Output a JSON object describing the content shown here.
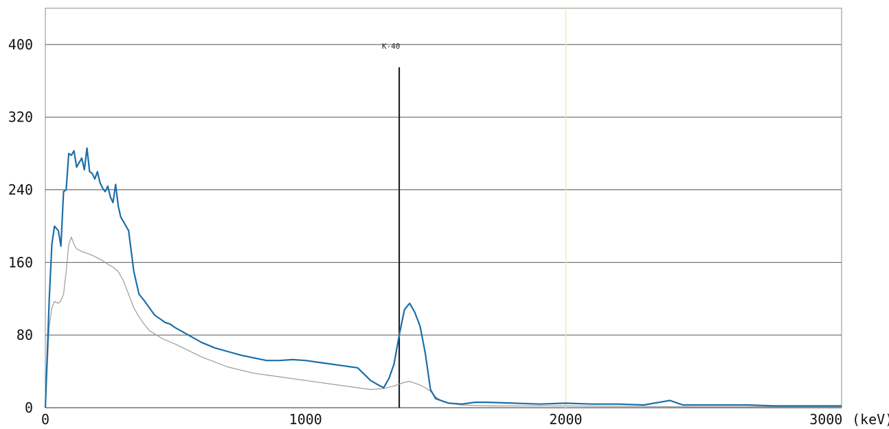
{
  "chart_data": {
    "type": "line",
    "title": "",
    "xlabel": "",
    "ylabel": "",
    "x_unit": "(keV)",
    "xlim": [
      0,
      3060
    ],
    "ylim": [
      0,
      440
    ],
    "x_ticks": [
      0,
      1000,
      2000,
      3000
    ],
    "y_ticks": [
      0,
      80,
      160,
      240,
      320,
      400
    ],
    "grid": "horizontal",
    "legend": "none",
    "series": [
      {
        "color": "#1a6ea8",
        "x": [
          0,
          15,
          25,
          35,
          50,
          60,
          70,
          80,
          90,
          100,
          110,
          120,
          130,
          140,
          150,
          160,
          170,
          180,
          190,
          200,
          210,
          220,
          230,
          240,
          250,
          260,
          270,
          280,
          290,
          300,
          320,
          340,
          360,
          380,
          400,
          420,
          440,
          460,
          480,
          500,
          550,
          600,
          650,
          700,
          750,
          800,
          850,
          900,
          950,
          1000,
          1050,
          1100,
          1150,
          1200,
          1250,
          1280,
          1300,
          1320,
          1340,
          1360,
          1380,
          1400,
          1420,
          1440,
          1460,
          1480,
          1500,
          1520,
          1550,
          1600,
          1650,
          1700,
          1800,
          1900,
          2000,
          2100,
          2200,
          2300,
          2400,
          2450,
          2500,
          2600,
          2700,
          2800,
          2900,
          3000,
          3060
        ],
        "y": [
          0,
          120,
          180,
          200,
          195,
          178,
          238,
          240,
          280,
          278,
          283,
          265,
          270,
          275,
          262,
          286,
          260,
          258,
          252,
          260,
          248,
          242,
          238,
          244,
          232,
          226,
          246,
          222,
          210,
          205,
          195,
          150,
          125,
          118,
          110,
          102,
          98,
          94,
          92,
          88,
          80,
          72,
          66,
          62,
          58,
          55,
          52,
          52,
          53,
          52,
          50,
          48,
          46,
          44,
          30,
          25,
          22,
          32,
          48,
          80,
          108,
          115,
          105,
          90,
          60,
          20,
          10,
          8,
          5,
          4,
          6,
          6,
          5,
          4,
          5,
          4,
          4,
          3,
          8,
          3,
          3,
          3,
          3,
          2,
          2,
          2,
          2
        ]
      },
      {
        "color": "#9a9a9a",
        "x": [
          0,
          15,
          25,
          35,
          50,
          60,
          70,
          80,
          90,
          100,
          110,
          120,
          140,
          160,
          180,
          200,
          220,
          240,
          260,
          280,
          300,
          320,
          340,
          360,
          380,
          400,
          450,
          500,
          550,
          600,
          700,
          800,
          900,
          1000,
          1100,
          1200,
          1250,
          1300,
          1340,
          1380,
          1400,
          1420,
          1440,
          1460,
          1480,
          1500,
          1520,
          1550,
          1600,
          1700,
          1800,
          2000,
          2500,
          3000,
          3060
        ],
        "y": [
          0,
          90,
          110,
          117,
          115,
          118,
          125,
          150,
          180,
          188,
          180,
          175,
          172,
          170,
          168,
          165,
          162,
          158,
          155,
          150,
          140,
          125,
          110,
          100,
          92,
          85,
          76,
          70,
          63,
          56,
          45,
          38,
          34,
          30,
          26,
          22,
          20,
          21,
          24,
          28,
          29,
          27,
          25,
          22,
          18,
          12,
          8,
          5,
          3,
          2,
          2,
          2,
          1,
          1,
          1
        ]
      }
    ],
    "markers": [
      {
        "label": "K-40",
        "x": 1360,
        "y_top": 375,
        "color": "#111111"
      },
      {
        "label": "",
        "x": 2000,
        "y_top": 440,
        "color": "#e8f0a0"
      }
    ]
  }
}
